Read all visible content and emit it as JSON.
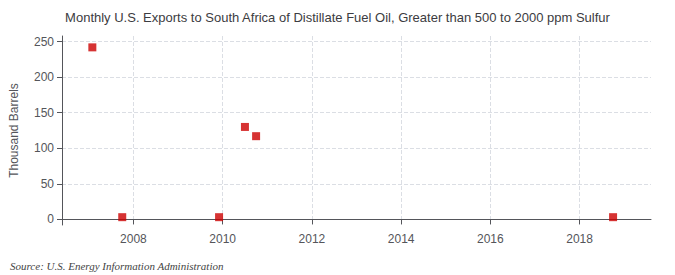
{
  "chart_data": {
    "type": "scatter",
    "title": "Monthly U.S. Exports to South Africa of Distillate Fuel Oil, Greater than 500 to 2000 ppm Sulfur",
    "ylabel": "Thousand Barrels",
    "annotations": [
      "Source: U.S. Energy Information Administration"
    ],
    "x": [
      2007.08,
      2007.75,
      2009.92,
      2010.5,
      2010.75,
      2018.75
    ],
    "values": [
      242,
      3,
      3,
      130,
      117,
      3
    ],
    "color": "#cc0000",
    "marker": "square",
    "xlim": [
      2006.4,
      2019.6
    ],
    "ylim": [
      -8,
      258
    ],
    "xticks": [
      2008,
      2010,
      2012,
      2014,
      2016,
      2018
    ],
    "yticks": [
      0,
      50,
      100,
      150,
      200,
      250
    ],
    "grid": true
  }
}
